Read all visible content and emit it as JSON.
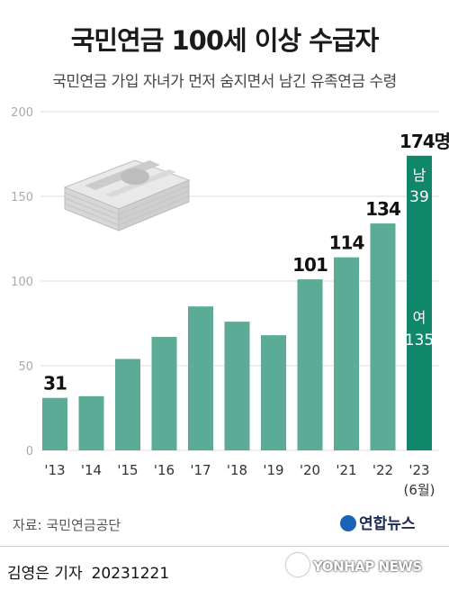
{
  "title": "국민연금 100세 이상 수급자",
  "subtitle": "국민연금 가입 자녀가 먼저 숨지면서 남긴 유족연금 수령",
  "chart_data": {
    "type": "bar",
    "categories": [
      "'13",
      "'14",
      "'15",
      "'16",
      "'17",
      "'18",
      "'19",
      "'20",
      "'21",
      "'22",
      "'23"
    ],
    "category_note": "(6월)",
    "values": [
      31,
      32,
      54,
      67,
      85,
      76,
      68,
      101,
      114,
      134,
      174
    ],
    "value_labels": [
      "31",
      "",
      "",
      "",
      "",
      "",
      "",
      "101",
      "114",
      "134",
      "174명"
    ],
    "last_breakdown": [
      {
        "name": "남",
        "value": 39,
        "label": "39"
      },
      {
        "name": "여",
        "value": 135,
        "label": "135"
      }
    ],
    "yticks": [
      0,
      50,
      100,
      150,
      200
    ],
    "ylim": [
      0,
      200
    ],
    "colors": {
      "bar": "#5cab96",
      "highlight": "#10876b",
      "highlight_text": "#ffffff"
    }
  },
  "source": "자료: 국민연금공단",
  "logo": "연합뉴스",
  "byline": {
    "author": "김영은 기자",
    "date": "20231221"
  },
  "agency_mark": "YONHAP NEWS"
}
